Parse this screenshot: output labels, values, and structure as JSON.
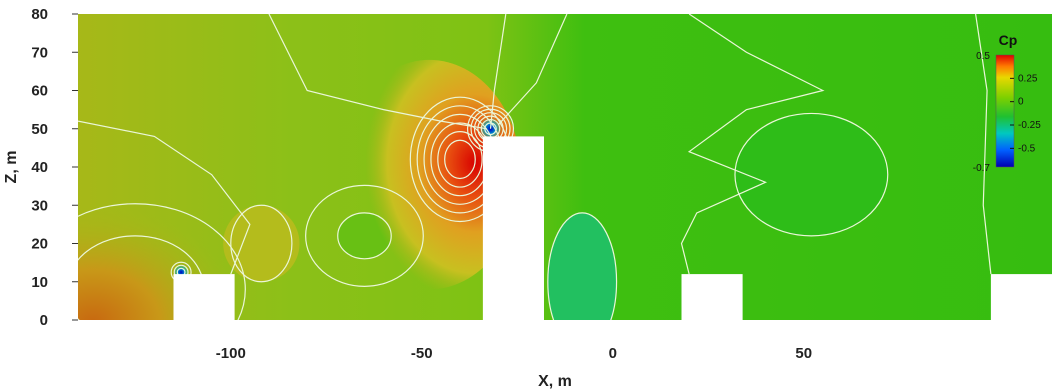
{
  "chart_data": {
    "type": "heatmap",
    "xlabel": "X, m",
    "ylabel": "Z, m",
    "xlim": [
      -140,
      115
    ],
    "ylim": [
      0,
      80
    ],
    "x_ticks": [
      -100,
      -50,
      0,
      50
    ],
    "y_ticks": [
      0,
      10,
      20,
      30,
      40,
      50,
      60,
      70,
      80
    ],
    "grid": false,
    "colorbar": {
      "title": "Cp",
      "range": [
        -0.7,
        0.5
      ],
      "major_ticks": [
        0.5,
        -0.7
      ],
      "minor_ticks": [
        0.25,
        0,
        -0.25,
        -0.5
      ],
      "placement": "top-right"
    },
    "buildings": [
      {
        "x_min": -115,
        "x_max": -99,
        "z_max": 12
      },
      {
        "x_min": -34,
        "x_max": -18,
        "z_max": 48
      },
      {
        "x_min": 18,
        "x_max": 34,
        "z_max": 12
      },
      {
        "x_min": 99,
        "x_max": 115,
        "z_max": 12
      }
    ],
    "pressure_zones": [
      {
        "x": -125,
        "z": 8,
        "cp": 0.3
      },
      {
        "x": -105,
        "z": 25,
        "cp": 0.12
      },
      {
        "x": -92,
        "z": 20,
        "cp": 0.15
      },
      {
        "x": -65,
        "z": 22,
        "cp": -0.12
      },
      {
        "x": -40,
        "z": 42,
        "cp": 0.45
      },
      {
        "x": -32,
        "z": 50,
        "cp": -0.6
      },
      {
        "x": -113,
        "z": 12,
        "cp": -0.25
      },
      {
        "x": -8,
        "z": 10,
        "cp": -0.25
      },
      {
        "x": 50,
        "z": 35,
        "cp": -0.2
      },
      {
        "x": 80,
        "z": 50,
        "cp": -0.15
      }
    ]
  }
}
